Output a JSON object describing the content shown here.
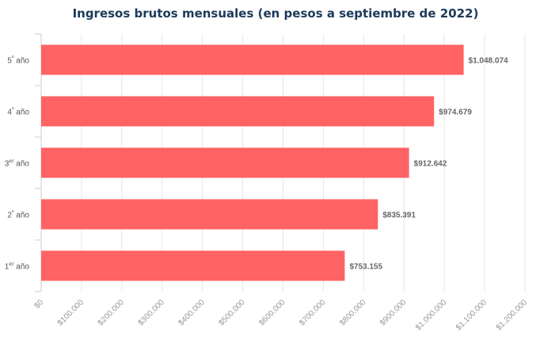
{
  "chart_data": {
    "type": "bar",
    "orientation": "horizontal",
    "title": "Ingresos brutos mensuales (en pesos a septiembre de 2022)",
    "categories": [
      {
        "num": "5",
        "sup": "º",
        "rest": " año"
      },
      {
        "num": "4",
        "sup": "º",
        "rest": " año"
      },
      {
        "num": "3",
        "sup": "er",
        "rest": " año"
      },
      {
        "num": "2",
        "sup": "º",
        "rest": " año"
      },
      {
        "num": "1",
        "sup": "er",
        "rest": " año"
      }
    ],
    "values": [
      1048074,
      974679,
      912642,
      835391,
      753155
    ],
    "data_labels": [
      "$1.048.074",
      "$974.679",
      "$912.642",
      "$835.391",
      "$753.155"
    ],
    "xlim": [
      0,
      1200000
    ],
    "x_ticks": [
      0,
      100000,
      200000,
      300000,
      400000,
      500000,
      600000,
      700000,
      800000,
      900000,
      1000000,
      1100000,
      1200000
    ],
    "x_tick_labels": [
      "$0",
      "$100.000",
      "$200.000",
      "$300.000",
      "$400.000",
      "$500.000",
      "$600.000",
      "$700.000",
      "$800.000",
      "$900.000",
      "$1.000.000",
      "$1.100.000",
      "$1.200.000"
    ],
    "grid": true,
    "bar_color": "#ff6363",
    "title_color": "#1c3a5a"
  }
}
